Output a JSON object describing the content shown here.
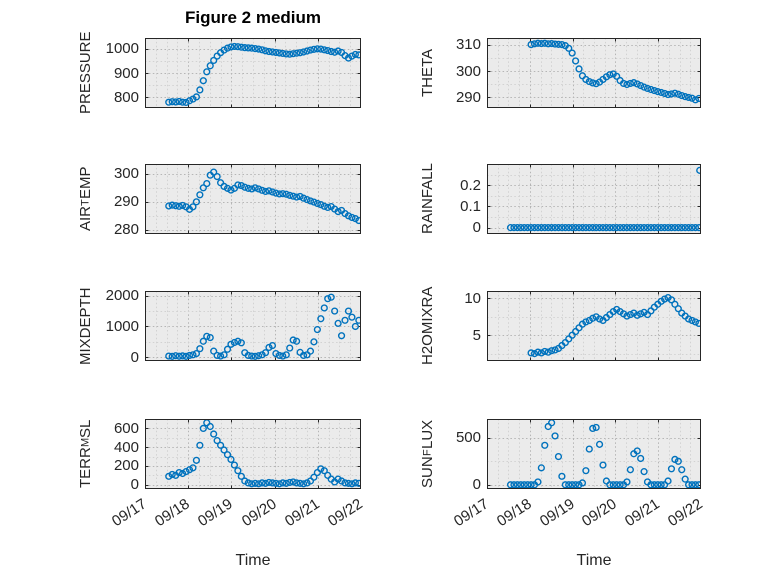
{
  "figure": {
    "panel_color": "#ebebeb",
    "grid_major_color": "#b5b5b5",
    "grid_minor_color": "#d2d2d2",
    "border_color": "#262626",
    "marker_color": "#0072BD"
  },
  "x_axis": {
    "lim": [
      17,
      22
    ],
    "ticks": [
      17,
      18,
      19,
      20,
      21,
      22
    ],
    "tick_labels": [
      "09/17",
      "09/18",
      "09/19",
      "09/20",
      "09/21",
      "09/22"
    ],
    "grids": {
      "full": [
        17.55,
        17.63,
        17.71,
        17.79,
        17.87,
        17.95,
        18.03,
        18.11,
        18.19,
        18.27,
        18.35,
        18.43,
        18.51,
        18.59,
        18.67,
        18.75,
        18.83,
        18.91,
        18.99,
        19.07,
        19.15,
        19.23,
        19.31,
        19.39,
        19.47,
        19.55,
        19.63,
        19.71,
        19.79,
        19.87,
        19.95,
        20.03,
        20.11,
        20.19,
        20.27,
        20.35,
        20.43,
        20.51,
        20.59,
        20.67,
        20.75,
        20.83,
        20.91,
        20.99,
        21.07,
        21.15,
        21.23,
        21.31,
        21.39,
        21.47,
        21.55,
        21.63,
        21.71,
        21.79,
        21.87,
        21.95
      ],
      "late": [
        18.03,
        18.11,
        18.19,
        18.27,
        18.35,
        18.43,
        18.51,
        18.59,
        18.67,
        18.75,
        18.83,
        18.91,
        18.99,
        19.07,
        19.15,
        19.23,
        19.31,
        19.39,
        19.47,
        19.55,
        19.63,
        19.71,
        19.79,
        19.87,
        19.95,
        20.03,
        20.11,
        20.19,
        20.27,
        20.35,
        20.43,
        20.51,
        20.59,
        20.67,
        20.75,
        20.83,
        20.91,
        20.99,
        21.07,
        21.15,
        21.23,
        21.31,
        21.39,
        21.47,
        21.55,
        21.63,
        21.71,
        21.79,
        21.87,
        21.95
      ]
    }
  },
  "chart_data": [
    {
      "type": "scatter",
      "title": "Figure 2 medium",
      "ylabel_pre": "PRESSURE",
      "ylabel_sub": "",
      "ylabel_post": "",
      "yticks": [
        800,
        900,
        1000
      ],
      "ylim": [
        755,
        1045
      ],
      "x_grid": "full",
      "y": [
        779,
        781,
        780,
        782,
        779,
        778,
        785,
        792,
        801,
        830,
        868,
        905,
        930,
        952,
        970,
        984,
        995,
        1003,
        1008,
        1010,
        1009,
        1007,
        1005,
        1004,
        1003,
        1001,
        999,
        996,
        992,
        989,
        987,
        985,
        983,
        981,
        979,
        978,
        980,
        982,
        984,
        987,
        991,
        995,
        998,
        1000,
        999,
        996,
        993,
        989,
        986,
        991,
        985,
        972,
        962,
        970,
        977,
        975
      ]
    },
    {
      "type": "scatter",
      "ylabel_pre": "THETA",
      "ylabel_sub": "",
      "ylabel_post": "",
      "yticks": [
        290,
        300,
        310
      ],
      "ylim": [
        286,
        312.5
      ],
      "x_grid": "late",
      "y": [
        310.0,
        310.3,
        310.5,
        310.4,
        310.5,
        310.3,
        310.4,
        310.2,
        310.1,
        310.0,
        309.6,
        308.6,
        306.8,
        303.8,
        300.8,
        298.2,
        296.8,
        296.0,
        295.5,
        295.2,
        295.8,
        296.8,
        297.8,
        298.6,
        298.9,
        298.0,
        296.4,
        295.3,
        294.9,
        295.3,
        295.6,
        295.1,
        294.5,
        293.9,
        293.4,
        293.0,
        292.6,
        292.2,
        291.9,
        291.5,
        291.1,
        291.3,
        291.6,
        291.2,
        290.7,
        290.3,
        290.0,
        289.7,
        289.1,
        289.6
      ]
    },
    {
      "type": "scatter",
      "ylabel_pre": "AIR",
      "ylabel_sub": "T",
      "ylabel_post": "EMP",
      "yticks": [
        280,
        290,
        300
      ],
      "ylim": [
        278.5,
        303.5
      ],
      "x_grid": "full",
      "y": [
        288.5,
        288.8,
        288.6,
        288.4,
        288.7,
        288.2,
        287.3,
        288.2,
        290.0,
        292.5,
        295.0,
        296.5,
        299.5,
        300.6,
        299.0,
        296.8,
        295.5,
        294.8,
        294.2,
        294.8,
        296.0,
        295.8,
        295.2,
        294.8,
        294.6,
        295.0,
        294.6,
        294.1,
        293.7,
        293.9,
        293.5,
        293.1,
        292.8,
        292.9,
        292.7,
        292.3,
        292.0,
        291.7,
        291.9,
        291.3,
        290.8,
        290.3,
        289.9,
        289.4,
        289.0,
        288.4,
        288.0,
        288.3,
        287.4,
        286.5,
        286.9,
        285.8,
        285.0,
        284.4,
        284.0,
        283.3
      ]
    },
    {
      "type": "scatter",
      "ylabel_pre": "RAINFALL",
      "ylabel_sub": "",
      "ylabel_post": "",
      "yticks": [
        0,
        0.1,
        0.2
      ],
      "ylim": [
        -0.03,
        0.3
      ],
      "x_grid": "full",
      "y": [
        0,
        0,
        0,
        0,
        0,
        0,
        0,
        0,
        0,
        0,
        0,
        0,
        0,
        0,
        0,
        0,
        0,
        0,
        0,
        0,
        0,
        0,
        0,
        0,
        0,
        0,
        0,
        0,
        0,
        0,
        0,
        0,
        0,
        0,
        0,
        0,
        0,
        0,
        0,
        0,
        0,
        0,
        0,
        0,
        0,
        0,
        0,
        0,
        0,
        0,
        0,
        0,
        0,
        0,
        0,
        0
      ],
      "x_extra": [
        21.97
      ],
      "y_extra": [
        0.27
      ]
    },
    {
      "type": "scatter",
      "ylabel_pre": "MIXDEPTH",
      "ylabel_sub": "",
      "ylabel_post": "",
      "yticks": [
        0,
        1000,
        2000
      ],
      "ylim": [
        -120,
        2150
      ],
      "x_grid": "full",
      "y": [
        40,
        30,
        50,
        35,
        45,
        30,
        60,
        80,
        120,
        280,
        520,
        680,
        640,
        200,
        60,
        40,
        80,
        260,
        420,
        480,
        520,
        470,
        150,
        60,
        40,
        30,
        50,
        80,
        150,
        320,
        380,
        120,
        60,
        40,
        80,
        300,
        560,
        520,
        160,
        60,
        80,
        200,
        500,
        900,
        1250,
        1600,
        1900,
        1950,
        1500,
        1100,
        700,
        1200,
        1500,
        1300,
        1000,
        1200
      ]
    },
    {
      "type": "scatter",
      "ylabel_pre": "H2OMIXRA",
      "ylabel_sub": "",
      "ylabel_post": "",
      "yticks": [
        5,
        10
      ],
      "ylim": [
        1.5,
        11
      ],
      "x_grid": "late",
      "y": [
        2.6,
        2.5,
        2.7,
        2.6,
        2.8,
        2.7,
        2.9,
        3.0,
        3.2,
        3.6,
        4.0,
        4.5,
        5.0,
        5.5,
        6.0,
        6.5,
        6.8,
        7.0,
        7.3,
        7.5,
        7.2,
        7.0,
        7.4,
        7.8,
        8.2,
        8.5,
        8.2,
        7.9,
        7.6,
        7.8,
        8.0,
        7.7,
        7.9,
        8.1,
        7.8,
        8.3,
        8.8,
        9.2,
        9.6,
        9.9,
        10.1,
        9.8,
        9.2,
        8.6,
        8.0,
        7.6,
        7.2,
        7.0,
        6.8,
        6.6
      ]
    },
    {
      "type": "scatter",
      "xlabel": "Time",
      "ylabel_pre": "TERR",
      "ylabel_sub": "M",
      "ylabel_post": "SL",
      "yticks": [
        0,
        200,
        400,
        600
      ],
      "ylim": [
        -45,
        700
      ],
      "x_grid": "full",
      "y": [
        90,
        110,
        100,
        130,
        120,
        140,
        160,
        180,
        260,
        420,
        600,
        660,
        620,
        540,
        470,
        420,
        370,
        320,
        270,
        210,
        150,
        90,
        40,
        20,
        10,
        15,
        10,
        20,
        15,
        25,
        20,
        15,
        10,
        20,
        15,
        25,
        30,
        20,
        15,
        10,
        20,
        40,
        80,
        130,
        170,
        150,
        100,
        60,
        30,
        60,
        40,
        20,
        15,
        10,
        20,
        15
      ]
    },
    {
      "type": "scatter",
      "xlabel": "Time",
      "ylabel_pre": "SUN",
      "ylabel_sub": "F",
      "ylabel_post": "LUX",
      "yticks": [
        0,
        500
      ],
      "ylim": [
        -45,
        700
      ],
      "x_grid": "full",
      "y": [
        0,
        0,
        0,
        0,
        0,
        0,
        0,
        0,
        30,
        180,
        420,
        620,
        660,
        520,
        300,
        90,
        0,
        0,
        0,
        0,
        0,
        20,
        150,
        380,
        600,
        610,
        430,
        210,
        40,
        0,
        0,
        0,
        0,
        0,
        30,
        160,
        330,
        360,
        280,
        140,
        30,
        0,
        0,
        0,
        0,
        0,
        40,
        170,
        270,
        250,
        160,
        60,
        0,
        0,
        0,
        0
      ]
    }
  ]
}
